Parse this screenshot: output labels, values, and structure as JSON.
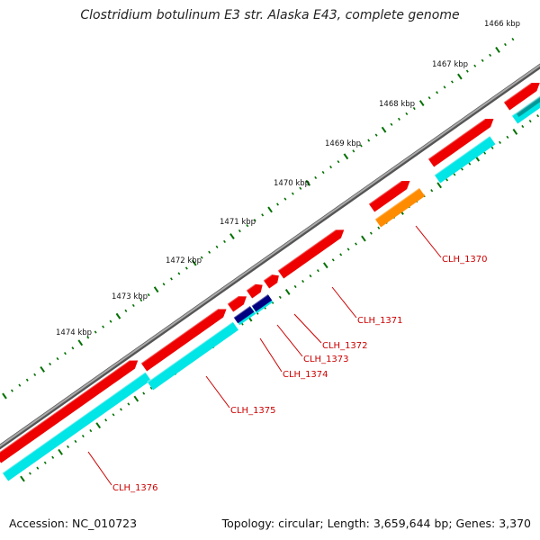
{
  "title": "Clostridium botulinum E3 str. Alaska E43, complete genome",
  "footer": {
    "accession": "Accession: NC_010723",
    "summary": "Topology: circular; Length: 3,659,644 bp; Genes: 3,370"
  },
  "ticks": [
    "1466 kbp",
    "1467 kbp",
    "1468 kbp",
    "1469 kbp",
    "1470 kbp",
    "1471 kbp",
    "1472 kbp",
    "1473 kbp",
    "1474 kbp"
  ],
  "genes": [
    "CLH_1370",
    "CLH_1371",
    "CLH_1372",
    "CLH_1373",
    "CLH_1374",
    "CLH_1375",
    "CLH_1376"
  ],
  "colors": {
    "backbone": "#888888",
    "cds_forward": "#ee0000",
    "cds_feature": "#00e5e5",
    "orange": "#ff8c00",
    "navy": "#000080",
    "tick": "#007000",
    "label": "#cc0000"
  }
}
